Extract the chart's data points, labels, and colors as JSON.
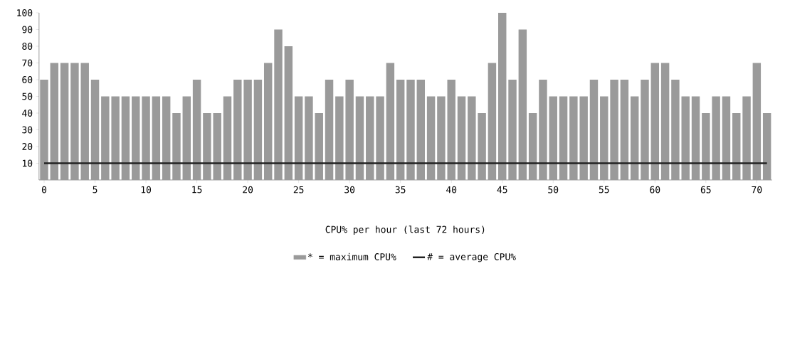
{
  "chart_data": {
    "type": "bar",
    "title": "CPU% per hour (last 72 hours)",
    "x": [
      0,
      1,
      2,
      3,
      4,
      5,
      6,
      7,
      8,
      9,
      10,
      11,
      12,
      13,
      14,
      15,
      16,
      17,
      18,
      19,
      20,
      21,
      22,
      23,
      24,
      25,
      26,
      27,
      28,
      29,
      30,
      31,
      32,
      33,
      34,
      35,
      36,
      37,
      38,
      39,
      40,
      41,
      42,
      43,
      44,
      45,
      46,
      47,
      48,
      49,
      50,
      51,
      52,
      53,
      54,
      55,
      56,
      57,
      58,
      59,
      60,
      61,
      62,
      63,
      64,
      65,
      66,
      67,
      68,
      69,
      70,
      71
    ],
    "series": [
      {
        "name": "* = maximum CPU%",
        "color": "#9a9a9a",
        "values": [
          60,
          70,
          70,
          70,
          70,
          60,
          50,
          50,
          50,
          50,
          50,
          50,
          50,
          40,
          50,
          60,
          40,
          40,
          50,
          60,
          60,
          60,
          70,
          90,
          80,
          50,
          50,
          40,
          60,
          50,
          60,
          50,
          50,
          50,
          70,
          60,
          60,
          60,
          50,
          50,
          60,
          50,
          50,
          40,
          70,
          100,
          60,
          90,
          40,
          60,
          50,
          50,
          50,
          50,
          60,
          50,
          60,
          60,
          50,
          60,
          70,
          70,
          60,
          50,
          50,
          40,
          50,
          50,
          40,
          50,
          70,
          40
        ]
      },
      {
        "name": "# = average CPU%",
        "type": "line",
        "color": "#222222",
        "values": [
          10,
          10,
          10,
          10,
          10,
          10,
          10,
          10,
          10,
          10,
          10,
          10,
          10,
          10,
          10,
          10,
          10,
          10,
          10,
          10,
          10,
          10,
          10,
          10,
          10,
          10,
          10,
          10,
          10,
          10,
          10,
          10,
          10,
          10,
          10,
          10,
          10,
          10,
          10,
          10,
          10,
          10,
          10,
          10,
          10,
          10,
          10,
          10,
          10,
          10,
          10,
          10,
          10,
          10,
          10,
          10,
          10,
          10,
          10,
          10,
          10,
          10,
          10,
          10,
          10,
          10,
          10,
          10,
          10,
          10,
          10,
          10
        ]
      }
    ],
    "xlim": [
      -0.5,
      71.5
    ],
    "xticks": [
      0,
      5,
      10,
      15,
      20,
      25,
      30,
      35,
      40,
      45,
      50,
      55,
      60,
      65,
      70
    ],
    "ylim": [
      0,
      100
    ],
    "yticks": [
      10,
      20,
      30,
      40,
      50,
      60,
      70,
      80,
      90,
      100
    ],
    "legend": "bottom"
  }
}
